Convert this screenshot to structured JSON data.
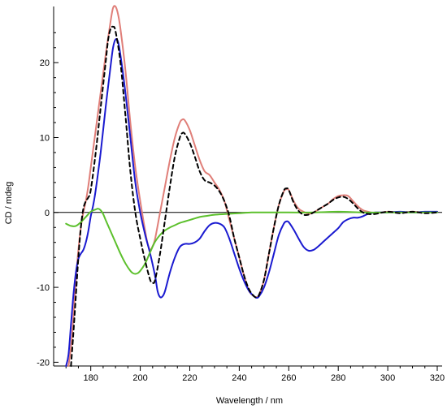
{
  "chart_data": {
    "type": "line",
    "title": "",
    "xlabel": "Wavelength / nm",
    "ylabel": "CD / mdeg",
    "xlim": [
      165,
      320
    ],
    "ylim": [
      -20.5,
      27.5
    ],
    "x_ticks": [
      180,
      200,
      220,
      240,
      260,
      280,
      300,
      320
    ],
    "y_ticks": [
      -20,
      -10,
      0,
      10,
      20
    ],
    "grid": false,
    "zero_line": true,
    "legend": "none",
    "series": [
      {
        "color": "#e07f79",
        "width": 2,
        "dash": "",
        "points": [
          [
            171,
            -20.5
          ],
          [
            172,
            -18
          ],
          [
            173,
            -14
          ],
          [
            174,
            -9
          ],
          [
            175,
            -5
          ],
          [
            176,
            -2
          ],
          [
            177,
            0
          ],
          [
            178,
            1.5
          ],
          [
            179,
            3.5
          ],
          [
            180,
            6
          ],
          [
            182,
            11
          ],
          [
            184,
            16
          ],
          [
            186,
            21
          ],
          [
            188,
            25.5
          ],
          [
            189,
            27.3
          ],
          [
            190,
            27.5
          ],
          [
            191,
            26.5
          ],
          [
            192,
            24.5
          ],
          [
            194,
            19
          ],
          [
            196,
            12
          ],
          [
            198,
            6
          ],
          [
            200,
            1.5
          ],
          [
            202,
            -2.5
          ],
          [
            203,
            -4.2
          ],
          [
            204,
            -5
          ],
          [
            205,
            -4.5
          ],
          [
            206,
            -3.5
          ],
          [
            208,
            0
          ],
          [
            210,
            3.5
          ],
          [
            212,
            7
          ],
          [
            214,
            10
          ],
          [
            216,
            12
          ],
          [
            217,
            12.4
          ],
          [
            218,
            12.3
          ],
          [
            220,
            11
          ],
          [
            222,
            9
          ],
          [
            224,
            7
          ],
          [
            226,
            5.5
          ],
          [
            228,
            5
          ],
          [
            230,
            4
          ],
          [
            232,
            3
          ],
          [
            234,
            1.5
          ],
          [
            236,
            -1
          ],
          [
            238,
            -3.5
          ],
          [
            240,
            -6
          ],
          [
            242,
            -8.5
          ],
          [
            244,
            -10.5
          ],
          [
            246,
            -11.2
          ],
          [
            247,
            -11.3
          ],
          [
            248,
            -11
          ],
          [
            250,
            -9
          ],
          [
            252,
            -5.5
          ],
          [
            254,
            -2
          ],
          [
            256,
            1
          ],
          [
            258,
            2.8
          ],
          [
            259,
            3.1
          ],
          [
            260,
            3
          ],
          [
            262,
            1.5
          ],
          [
            264,
            0.5
          ],
          [
            266,
            0.1
          ],
          [
            268,
            -0.2
          ],
          [
            270,
            0
          ],
          [
            272,
            0.4
          ],
          [
            274,
            0.8
          ],
          [
            276,
            1.2
          ],
          [
            278,
            1.8
          ],
          [
            280,
            2.2
          ],
          [
            282,
            2.3
          ],
          [
            284,
            2.2
          ],
          [
            286,
            1.5
          ],
          [
            288,
            0.8
          ],
          [
            290,
            0.3
          ],
          [
            292,
            0.1
          ],
          [
            295,
            -0.1
          ],
          [
            300,
            0.1
          ],
          [
            305,
            0
          ],
          [
            310,
            0.1
          ],
          [
            315,
            0
          ],
          [
            320,
            0.1
          ]
        ]
      },
      {
        "color": "#1a1ad0",
        "width": 2,
        "dash": "",
        "points": [
          [
            170,
            -20.5
          ],
          [
            171,
            -19
          ],
          [
            172,
            -15
          ],
          [
            173,
            -11
          ],
          [
            174,
            -8
          ],
          [
            175,
            -6.2
          ],
          [
            176,
            -5.5
          ],
          [
            177,
            -5
          ],
          [
            178,
            -4
          ],
          [
            179,
            -2.5
          ],
          [
            180,
            -0.5
          ],
          [
            181,
            1
          ],
          [
            182,
            3
          ],
          [
            184,
            8
          ],
          [
            186,
            14
          ],
          [
            188,
            19.5
          ],
          [
            189,
            22
          ],
          [
            190,
            23.1
          ],
          [
            191,
            22.8
          ],
          [
            192,
            21
          ],
          [
            194,
            16
          ],
          [
            196,
            10
          ],
          [
            198,
            4
          ],
          [
            200,
            0
          ],
          [
            202,
            -3
          ],
          [
            204,
            -5.5
          ],
          [
            206,
            -8.5
          ],
          [
            207,
            -10.5
          ],
          [
            208,
            -11.3
          ],
          [
            209,
            -11.2
          ],
          [
            210,
            -10.5
          ],
          [
            212,
            -8
          ],
          [
            214,
            -6
          ],
          [
            216,
            -4.6
          ],
          [
            218,
            -4.2
          ],
          [
            220,
            -4.2
          ],
          [
            222,
            -4
          ],
          [
            224,
            -3.5
          ],
          [
            226,
            -2.5
          ],
          [
            228,
            -1.7
          ],
          [
            230,
            -1.4
          ],
          [
            232,
            -1.5
          ],
          [
            234,
            -2
          ],
          [
            236,
            -3.5
          ],
          [
            238,
            -5.5
          ],
          [
            240,
            -7.5
          ],
          [
            242,
            -9.2
          ],
          [
            244,
            -10.5
          ],
          [
            246,
            -11.2
          ],
          [
            247,
            -11.4
          ],
          [
            248,
            -11.2
          ],
          [
            250,
            -10
          ],
          [
            252,
            -8
          ],
          [
            254,
            -5.5
          ],
          [
            256,
            -3
          ],
          [
            258,
            -1.5
          ],
          [
            259,
            -1.2
          ],
          [
            260,
            -1.3
          ],
          [
            262,
            -2.3
          ],
          [
            264,
            -3.5
          ],
          [
            266,
            -4.6
          ],
          [
            268,
            -5.1
          ],
          [
            270,
            -5
          ],
          [
            272,
            -4.5
          ],
          [
            274,
            -3.9
          ],
          [
            276,
            -3.3
          ],
          [
            278,
            -2.7
          ],
          [
            280,
            -2.1
          ],
          [
            282,
            -1.3
          ],
          [
            284,
            -0.9
          ],
          [
            286,
            -0.7
          ],
          [
            288,
            -0.7
          ],
          [
            290,
            -0.5
          ],
          [
            292,
            -0.2
          ],
          [
            295,
            0
          ],
          [
            300,
            0
          ],
          [
            305,
            0.1
          ],
          [
            310,
            0
          ],
          [
            315,
            0.1
          ],
          [
            320,
            0.1
          ]
        ]
      },
      {
        "color": "#5cc02c",
        "width": 2,
        "dash": "",
        "points": [
          [
            170,
            -1.5
          ],
          [
            172,
            -1.8
          ],
          [
            174,
            -1.8
          ],
          [
            176,
            -1.3
          ],
          [
            178,
            -0.6
          ],
          [
            180,
            0.1
          ],
          [
            182,
            0.4
          ],
          [
            183,
            0.5
          ],
          [
            184,
            0.3
          ],
          [
            185,
            -0.2
          ],
          [
            186,
            -1
          ],
          [
            188,
            -2.5
          ],
          [
            190,
            -4
          ],
          [
            192,
            -5.5
          ],
          [
            194,
            -6.8
          ],
          [
            196,
            -7.8
          ],
          [
            197,
            -8.1
          ],
          [
            198,
            -8.2
          ],
          [
            199,
            -8.1
          ],
          [
            200,
            -7.8
          ],
          [
            202,
            -6.8
          ],
          [
            204,
            -5.3
          ],
          [
            206,
            -3.9
          ],
          [
            208,
            -3
          ],
          [
            210,
            -2.4
          ],
          [
            212,
            -2
          ],
          [
            214,
            -1.7
          ],
          [
            216,
            -1.4
          ],
          [
            218,
            -1.2
          ],
          [
            220,
            -1
          ],
          [
            222,
            -0.8
          ],
          [
            224,
            -0.6
          ],
          [
            226,
            -0.5
          ],
          [
            228,
            -0.4
          ],
          [
            230,
            -0.3
          ],
          [
            235,
            -0.2
          ],
          [
            240,
            -0.1
          ],
          [
            245,
            0
          ],
          [
            250,
            0
          ],
          [
            260,
            0
          ],
          [
            270,
            0
          ],
          [
            280,
            0.1
          ],
          [
            290,
            0
          ],
          [
            300,
            0
          ],
          [
            310,
            0
          ],
          [
            320,
            0
          ]
        ]
      },
      {
        "color": "#000000",
        "width": 2,
        "dash": "5,4",
        "points": [
          [
            172,
            -20.5
          ],
          [
            173,
            -16
          ],
          [
            174,
            -11
          ],
          [
            175,
            -6
          ],
          [
            176,
            -2
          ],
          [
            177,
            0.5
          ],
          [
            178,
            1.5
          ],
          [
            179,
            2
          ],
          [
            180,
            3
          ],
          [
            182,
            8
          ],
          [
            184,
            14
          ],
          [
            186,
            20
          ],
          [
            187,
            23
          ],
          [
            188,
            24.5
          ],
          [
            189,
            24.8
          ],
          [
            190,
            24.2
          ],
          [
            192,
            20
          ],
          [
            194,
            13
          ],
          [
            196,
            5.5
          ],
          [
            198,
            0
          ],
          [
            200,
            -3.5
          ],
          [
            202,
            -6.5
          ],
          [
            204,
            -9
          ],
          [
            205,
            -9.4
          ],
          [
            206,
            -9
          ],
          [
            208,
            -5.5
          ],
          [
            210,
            -1
          ],
          [
            212,
            3.5
          ],
          [
            214,
            7.5
          ],
          [
            216,
            10
          ],
          [
            217,
            10.6
          ],
          [
            218,
            10.5
          ],
          [
            220,
            9.3
          ],
          [
            222,
            7.5
          ],
          [
            224,
            5.5
          ],
          [
            226,
            4.3
          ],
          [
            228,
            4
          ],
          [
            230,
            3.6
          ],
          [
            232,
            2.8
          ],
          [
            234,
            1.5
          ],
          [
            236,
            -0.5
          ],
          [
            238,
            -3.5
          ],
          [
            240,
            -6
          ],
          [
            242,
            -8.5
          ],
          [
            244,
            -10.3
          ],
          [
            246,
            -11.2
          ],
          [
            247,
            -11.3
          ],
          [
            248,
            -11
          ],
          [
            250,
            -9
          ],
          [
            252,
            -5.5
          ],
          [
            254,
            -2
          ],
          [
            256,
            1
          ],
          [
            258,
            2.9
          ],
          [
            259,
            3.2
          ],
          [
            260,
            3
          ],
          [
            262,
            1.3
          ],
          [
            264,
            0.2
          ],
          [
            266,
            -0.3
          ],
          [
            268,
            -0.3
          ],
          [
            270,
            0
          ],
          [
            272,
            0.4
          ],
          [
            274,
            0.8
          ],
          [
            276,
            1.2
          ],
          [
            278,
            1.7
          ],
          [
            280,
            2
          ],
          [
            282,
            2.1
          ],
          [
            284,
            1.8
          ],
          [
            286,
            1.2
          ],
          [
            288,
            0.5
          ],
          [
            290,
            0
          ],
          [
            292,
            -0.2
          ],
          [
            295,
            -0.2
          ],
          [
            300,
            0.1
          ],
          [
            305,
            -0.1
          ],
          [
            310,
            0.1
          ],
          [
            315,
            -0.1
          ],
          [
            320,
            0
          ]
        ]
      }
    ]
  }
}
